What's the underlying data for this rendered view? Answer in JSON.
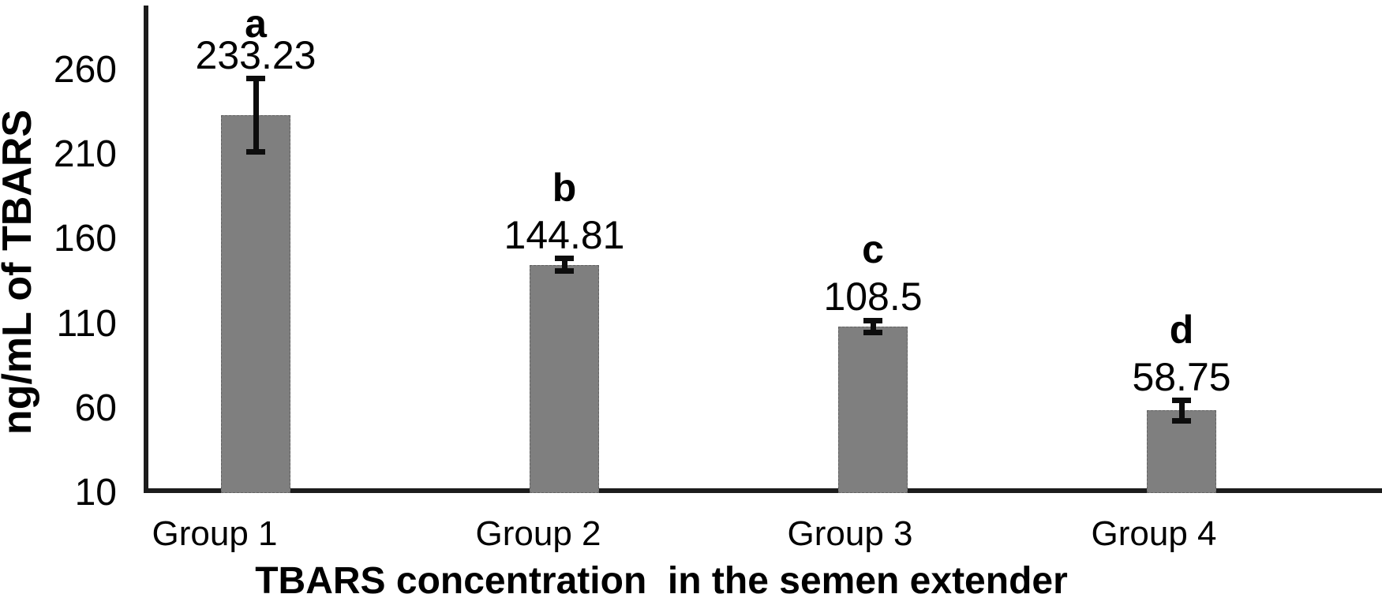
{
  "figure": {
    "background": "#ffffff"
  },
  "chart_data": {
    "type": "bar",
    "title": "",
    "categories": [
      "Group 1",
      "Group 2",
      "Group 3",
      "Group 4"
    ],
    "values": [
      233.23,
      144.81,
      108.5,
      58.75
    ],
    "value_labels": [
      "233.23",
      "144.81",
      "108.5",
      "58.75"
    ],
    "significance_letters": [
      "a",
      "b",
      "c",
      "d"
    ],
    "error_bars_plus_minus": [
      21.7,
      3.7,
      3.5,
      6
    ],
    "xlabel": "TBARS concentration  in the semen extender",
    "ylabel": "ng/mL of TBARS",
    "y_ticks": [
      260,
      210,
      160,
      110,
      60,
      10
    ],
    "ylim": [
      10,
      272
    ],
    "grid": false,
    "legend": "none",
    "bar_color": "#7f7f7f",
    "axis_color": "#1c1c1c",
    "error_bar_color": "#0d0d0d",
    "text_color": "#000000"
  }
}
